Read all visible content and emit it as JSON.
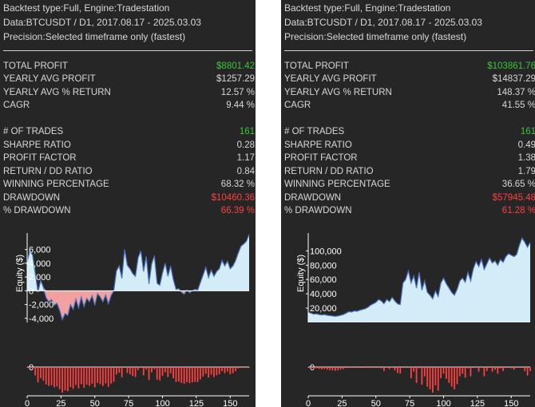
{
  "colors": {
    "panel_bg": "#262626",
    "text": "#d8d8d8",
    "positive": "#3cc43c",
    "negative": "#ff4040",
    "equity_fill": "#d4ecf7",
    "equity_line": "#4a73c8",
    "loss_fill": "#f2a0a0"
  },
  "panels": [
    {
      "header": {
        "backtest_type": "Backtest type:Full, Engine:Tradestation",
        "data": "Data:BTCUSDT / D1, 2017.08.17 - 2025.03.03",
        "precision": "Precision:Selected timeframe only (fastest)"
      },
      "stats": [
        {
          "label": "TOTAL PROFIT",
          "value": "$8801.42",
          "tone": "green"
        },
        {
          "label": "YEARLY AVG PROFIT",
          "value": "$1257.29",
          "tone": "white"
        },
        {
          "label": "YEARLY AVG % RETURN",
          "value": "12.57 %",
          "tone": "white"
        },
        {
          "label": "CAGR",
          "value": "9.44 %",
          "tone": "white"
        },
        {
          "label": "# OF TRADES",
          "value": "161",
          "tone": "green"
        },
        {
          "label": "SHARPE RATIO",
          "value": "0.28",
          "tone": "white"
        },
        {
          "label": "PROFIT FACTOR",
          "value": "1.17",
          "tone": "white"
        },
        {
          "label": "RETURN / DD RATIO",
          "value": "0.84",
          "tone": "white"
        },
        {
          "label": "WINNING PERCENTAGE",
          "value": "68.32 %",
          "tone": "white"
        },
        {
          "label": "DRAWDOWN",
          "value": "$10460.36",
          "tone": "red"
        },
        {
          "label": "% DRAWDOWN",
          "value": "66.39 %",
          "tone": "red"
        }
      ]
    },
    {
      "header": {
        "backtest_type": "Backtest type:Full, Engine:Tradestation",
        "data": "Data:BTCUSDT / D1, 2017.08.17 - 2025.03.03",
        "precision": "Precision:Selected timeframe only (fastest)"
      },
      "stats": [
        {
          "label": "TOTAL PROFIT",
          "value": "$103861.76",
          "tone": "green"
        },
        {
          "label": "YEARLY AVG PROFIT",
          "value": "$14837.29",
          "tone": "white"
        },
        {
          "label": "YEARLY AVG % RETURN",
          "value": "148.37 %",
          "tone": "white"
        },
        {
          "label": "CAGR",
          "value": "41.55 %",
          "tone": "white"
        },
        {
          "label": "# OF TRADES",
          "value": "161",
          "tone": "green"
        },
        {
          "label": "SHARPE RATIO",
          "value": "0.49",
          "tone": "white"
        },
        {
          "label": "PROFIT FACTOR",
          "value": "1.38",
          "tone": "white"
        },
        {
          "label": "RETURN / DD RATIO",
          "value": "1.79",
          "tone": "white"
        },
        {
          "label": "WINNING PERCENTAGE",
          "value": "36.65 %",
          "tone": "white"
        },
        {
          "label": "DRAWDOWN",
          "value": "$57945.48",
          "tone": "red"
        },
        {
          "label": "% DRAWDOWN",
          "value": "61.28 %",
          "tone": "red"
        }
      ]
    }
  ],
  "chart_data": [
    {
      "type": "area",
      "title": "",
      "ylabel": "Equity ($)",
      "xlabel": "",
      "x_ticks": [
        0,
        25,
        50,
        75,
        100,
        125,
        150
      ],
      "y_ticks": [
        -4000,
        -2000,
        0,
        2000,
        4000,
        6000
      ],
      "y_tick_labels": [
        "-4,000",
        "-2,000",
        "0",
        "2,000",
        "4,000",
        "6,000"
      ],
      "xlim": [
        0,
        164
      ],
      "ylim": [
        -4600,
        8400
      ],
      "series": [
        {
          "x": [
            0,
            2,
            4,
            6,
            8,
            10,
            12,
            14,
            16,
            18,
            20,
            22,
            24,
            26,
            28,
            30,
            32,
            34,
            36,
            38,
            40,
            42,
            44,
            46,
            48,
            50,
            52,
            54,
            56,
            58,
            60,
            62,
            64,
            66,
            68,
            70,
            72,
            74,
            76,
            78,
            80,
            82,
            84,
            86,
            88,
            90,
            92,
            94,
            96,
            98,
            100,
            102,
            104,
            106,
            108,
            110,
            112,
            114,
            116,
            118,
            120,
            122,
            124,
            126,
            128,
            130,
            132,
            134,
            136,
            138,
            140,
            142,
            144,
            146,
            148,
            150,
            152,
            154,
            156,
            158,
            160,
            162,
            164
          ],
          "values": [
            4200,
            5800,
            5200,
            2500,
            -200,
            1500,
            500,
            -1000,
            -1600,
            -1300,
            -2100,
            -1800,
            -2800,
            -4200,
            -3300,
            -3600,
            -2000,
            -2700,
            -1200,
            -2500,
            -900,
            -2300,
            -1100,
            -1600,
            -700,
            -2100,
            -400,
            -900,
            -1600,
            -600,
            -1900,
            -700,
            0,
            2900,
            3600,
            1800,
            6000,
            3700,
            3200,
            2500,
            2100,
            4800,
            5800,
            2800,
            5000,
            1000,
            3900,
            5100,
            1100,
            800,
            2600,
            4000,
            2100,
            3600,
            1600,
            200,
            300,
            -200,
            -500,
            100,
            -300,
            0,
            200,
            100,
            1200,
            2300,
            3400,
            1900,
            3000,
            2100,
            2800,
            3200,
            4400,
            3600,
            4300,
            3200,
            3600,
            4400,
            5500,
            6500,
            6800,
            7200,
            8200
          ]
        }
      ],
      "drawdown_axis_label": "0"
    },
    {
      "type": "area",
      "title": "",
      "ylabel": "Equity ($)",
      "xlabel": "",
      "x_ticks": [
        0,
        25,
        50,
        75,
        100,
        125,
        150
      ],
      "y_ticks": [
        20000,
        40000,
        60000,
        80000,
        100000
      ],
      "y_tick_labels": [
        "20,000",
        "40,000",
        "60,000",
        "80,000",
        "100,000"
      ],
      "xlim": [
        0,
        164
      ],
      "ylim": [
        0,
        125000
      ],
      "series": [
        {
          "x": [
            0,
            2,
            4,
            6,
            8,
            10,
            12,
            14,
            16,
            18,
            20,
            22,
            24,
            26,
            28,
            30,
            32,
            34,
            36,
            38,
            40,
            42,
            44,
            46,
            48,
            50,
            52,
            54,
            56,
            58,
            60,
            62,
            64,
            66,
            68,
            70,
            72,
            74,
            76,
            78,
            80,
            82,
            84,
            86,
            88,
            90,
            92,
            94,
            96,
            98,
            100,
            102,
            104,
            106,
            108,
            110,
            112,
            114,
            116,
            118,
            120,
            122,
            124,
            126,
            128,
            130,
            132,
            134,
            136,
            138,
            140,
            142,
            144,
            146,
            148,
            150,
            152,
            154,
            156,
            158,
            160,
            162,
            164
          ],
          "values": [
            14000,
            13000,
            11500,
            12000,
            11000,
            10500,
            11000,
            10000,
            9500,
            9000,
            8500,
            9000,
            10000,
            11000,
            13000,
            15000,
            14500,
            16000,
            15500,
            17000,
            18000,
            19000,
            21000,
            24000,
            26000,
            28000,
            32000,
            30000,
            26000,
            32000,
            29000,
            35000,
            30000,
            26000,
            25000,
            55000,
            60000,
            72000,
            55000,
            65000,
            48000,
            70000,
            45000,
            58000,
            42000,
            38000,
            33000,
            44000,
            36000,
            55000,
            62000,
            54000,
            48000,
            42000,
            38000,
            46000,
            58000,
            62000,
            56000,
            70000,
            58000,
            75000,
            85000,
            78000,
            88000,
            74000,
            82000,
            90000,
            83000,
            86000,
            80000,
            88000,
            84000,
            92000,
            96000,
            94000,
            92000,
            95000,
            108000,
            118000,
            112000,
            105000,
            112000
          ]
        }
      ],
      "drawdown_axis_label": "0"
    }
  ]
}
